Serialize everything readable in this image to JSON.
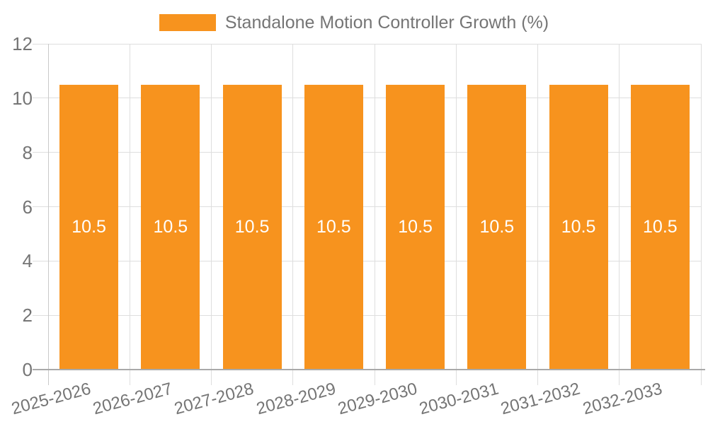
{
  "legend": {
    "label": "Standalone Motion Controller Growth (%)"
  },
  "chart_data": {
    "type": "bar",
    "title": "",
    "categories": [
      "2025-2026",
      "2026-2027",
      "2027-2028",
      "2028-2029",
      "2029-2030",
      "2030-2031",
      "2031-2032",
      "2032-2033"
    ],
    "series": [
      {
        "name": "Standalone Motion Controller Growth (%)",
        "values": [
          10.5,
          10.5,
          10.5,
          10.5,
          10.5,
          10.5,
          10.5,
          10.5
        ]
      }
    ],
    "value_labels": [
      "10.5",
      "10.5",
      "10.5",
      "10.5",
      "10.5",
      "10.5",
      "10.5",
      "10.5"
    ],
    "xlabel": "",
    "ylabel": "",
    "ylim": [
      0,
      12
    ],
    "yticks": [
      0,
      2,
      4,
      6,
      8,
      10,
      12
    ],
    "grid": true,
    "legend_position": "top",
    "x_label_rotation_deg": -15
  },
  "colors": {
    "bar": "#f7931e",
    "grid": "#dedede",
    "tick": "#c9c9c9",
    "x_axis_line": "#a9a9a9",
    "text": "#757575",
    "bar_value_text": "#ffffff",
    "background": "#ffffff"
  }
}
